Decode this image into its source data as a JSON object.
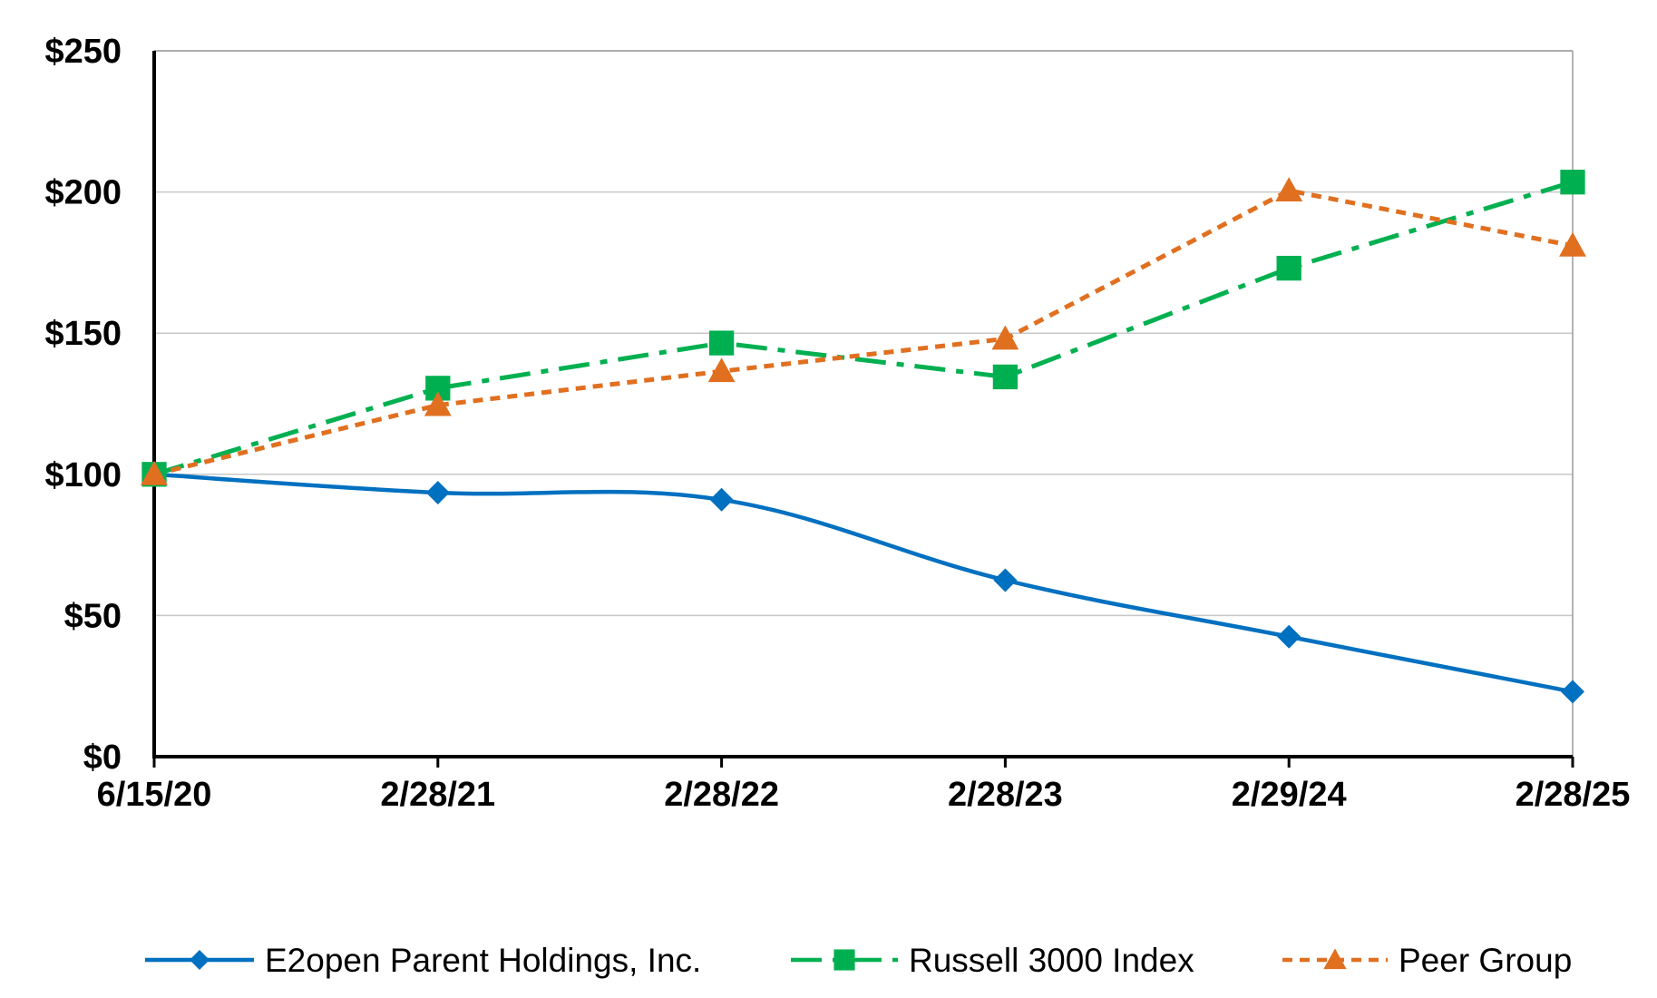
{
  "chart_data": {
    "type": "line",
    "title": "",
    "xlabel": "",
    "ylabel": "",
    "categories": [
      "6/15/20",
      "2/28/21",
      "2/28/22",
      "2/28/23",
      "2/29/24",
      "2/28/25"
    ],
    "ylim": [
      0,
      250
    ],
    "y_ticks": [
      0,
      50,
      100,
      150,
      200,
      250
    ],
    "y_tick_labels": [
      "$0",
      "$50",
      "$100",
      "$150",
      "$200",
      "$250"
    ],
    "grid": "horizontal",
    "legend_position": "bottom",
    "series": [
      {
        "name": "E2open Parent Holdings, Inc.",
        "values": [
          100,
          93.5,
          91,
          62.5,
          42.5,
          23
        ],
        "color": "#0070c0",
        "line_style": "solid",
        "marker": "diamond-icon",
        "smooth": true
      },
      {
        "name": "Russell 3000 Index",
        "values": [
          100,
          130.5,
          146.5,
          134.5,
          173,
          203.5
        ],
        "color": "#00b050",
        "line_style": "long-dash-dot",
        "marker": "square-icon",
        "smooth": false
      },
      {
        "name": "Peer Group",
        "values": [
          100,
          124.5,
          136.5,
          148,
          200.5,
          181
        ],
        "color": "#e07020",
        "line_style": "short-dash",
        "marker": "triangle-icon",
        "smooth": false
      }
    ]
  }
}
